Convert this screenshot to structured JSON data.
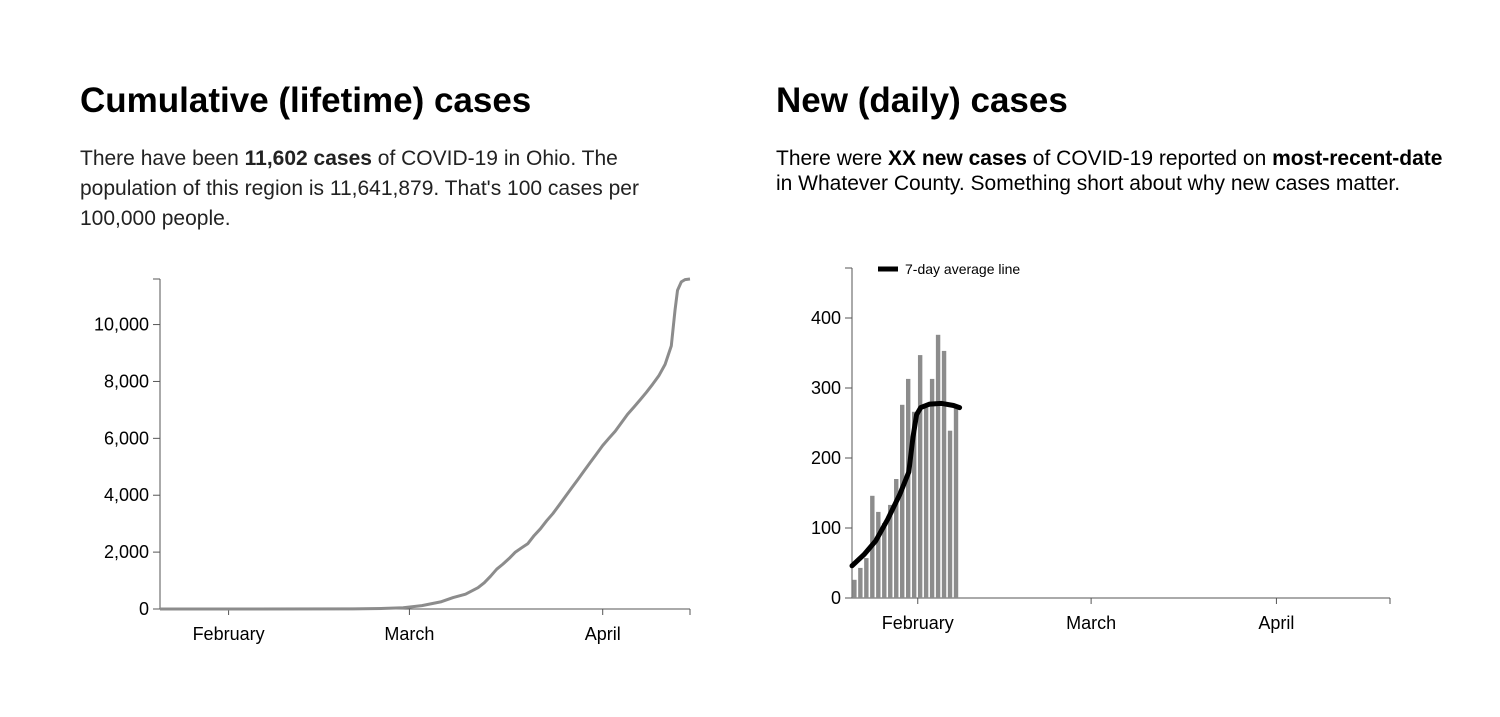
{
  "left": {
    "title": "Cumulative (lifetime) cases",
    "desc_prefix": "There have been ",
    "desc_bold": "11,602 cases",
    "desc_suffix": " of COVID-19 in Ohio. The population of this region is 11,641,879. That's 100 cases per 100,000 people."
  },
  "right": {
    "title": "New (daily) cases",
    "desc_prefix": "There were ",
    "desc_bold1": "XX new cases",
    "desc_mid": " of COVID-19 reported on ",
    "desc_bold2": "most-recent-date",
    "desc_suffix": " in Whatever County. Something short about why new cases matter."
  },
  "colors": {
    "bar": "#8c8c8c",
    "cumulative_line": "#8c8c8c",
    "average_line": "#000000",
    "axis": "#555555"
  },
  "chart_data": [
    {
      "type": "line",
      "title": "",
      "xlabel": "",
      "ylabel": "",
      "x_ticks": [
        {
          "label": "February",
          "day": 0
        },
        {
          "label": "March",
          "day": 29
        },
        {
          "label": "April",
          "day": 60
        }
      ],
      "xlim": [
        -11,
        74
      ],
      "y_ticks": [
        {
          "label": "10,000",
          "value": 10000
        },
        {
          "label": "8,000",
          "value": 8000
        },
        {
          "label": "6,000",
          "value": 6000
        },
        {
          "label": "4,000",
          "value": 4000
        },
        {
          "label": "2,000",
          "value": 2000
        },
        {
          "label": "0",
          "value": 0
        }
      ],
      "ylim": [
        0,
        11602
      ],
      "series": [
        {
          "points": [
            [
              -11,
              0
            ],
            [
              0,
              0
            ],
            [
              20,
              5
            ],
            [
              25,
              20
            ],
            [
              28,
              45
            ],
            [
              31,
              120
            ],
            [
              34,
              250
            ],
            [
              36,
              400
            ],
            [
              38,
              520
            ],
            [
              40,
              750
            ],
            [
              41,
              920
            ],
            [
              42,
              1150
            ],
            [
              43,
              1400
            ],
            [
              44,
              1580
            ],
            [
              45,
              1780
            ],
            [
              46,
              2000
            ],
            [
              47,
              2150
            ],
            [
              48,
              2300
            ],
            [
              49,
              2580
            ],
            [
              50,
              2820
            ],
            [
              51,
              3100
            ],
            [
              52,
              3350
            ],
            [
              53,
              3650
            ],
            [
              54,
              3950
            ],
            [
              55,
              4250
            ],
            [
              56,
              4550
            ],
            [
              57,
              4850
            ],
            [
              58,
              5150
            ],
            [
              59,
              5450
            ],
            [
              60,
              5750
            ],
            [
              61,
              6000
            ],
            [
              62,
              6250
            ],
            [
              63,
              6550
            ],
            [
              64,
              6850
            ],
            [
              65,
              7100
            ],
            [
              66,
              7350
            ],
            [
              67,
              7620
            ],
            [
              68,
              7900
            ],
            [
              69,
              8200
            ],
            [
              70,
              8600
            ],
            [
              71,
              9250
            ],
            [
              71.6,
              10500
            ],
            [
              72,
              11200
            ],
            [
              72.6,
              11500
            ],
            [
              73.2,
              11580
            ],
            [
              74,
              11602
            ]
          ]
        }
      ]
    },
    {
      "type": "bar",
      "title": "",
      "xlabel": "",
      "ylabel": "",
      "x_ticks": [
        {
          "label": "February",
          "day": 0
        },
        {
          "label": "March",
          "day": 29
        },
        {
          "label": "April",
          "day": 60
        }
      ],
      "xlim": [
        -11,
        79
      ],
      "y_ticks": [
        {
          "label": "400",
          "value": 400
        },
        {
          "label": "300",
          "value": 300
        },
        {
          "label": "200",
          "value": 200
        },
        {
          "label": "100",
          "value": 100
        },
        {
          "label": "0",
          "value": 0
        }
      ],
      "ylim": [
        0,
        400
      ],
      "bars": [
        {
          "day": -10.6,
          "value": 26
        },
        {
          "day": -9.6,
          "value": 43
        },
        {
          "day": -8.6,
          "value": 57
        },
        {
          "day": -7.6,
          "value": 146
        },
        {
          "day": -6.6,
          "value": 123
        },
        {
          "day": -5.6,
          "value": 107
        },
        {
          "day": -4.6,
          "value": 133
        },
        {
          "day": -3.6,
          "value": 170
        },
        {
          "day": -2.6,
          "value": 276
        },
        {
          "day": -1.6,
          "value": 313
        },
        {
          "day": -0.6,
          "value": 266
        },
        {
          "day": 0.4,
          "value": 347
        },
        {
          "day": 1.4,
          "value": 272
        },
        {
          "day": 2.4,
          "value": 313
        },
        {
          "day": 3.4,
          "value": 376
        },
        {
          "day": 4.4,
          "value": 353
        },
        {
          "day": 5.4,
          "value": 239
        },
        {
          "day": 6.4,
          "value": 276
        }
      ],
      "series": [
        {
          "name": "7-day average line",
          "points": [
            [
              -11,
              46
            ],
            [
              -9,
              62
            ],
            [
              -7,
              82
            ],
            [
              -5,
              113
            ],
            [
              -3,
              148
            ],
            [
              -1.5,
              180
            ],
            [
              -0.8,
              230
            ],
            [
              -0.2,
              262
            ],
            [
              0.5,
              272
            ],
            [
              2,
              277
            ],
            [
              4,
              278
            ],
            [
              6,
              275
            ],
            [
              7,
              272
            ]
          ]
        }
      ],
      "legend_position": "top-left"
    }
  ]
}
